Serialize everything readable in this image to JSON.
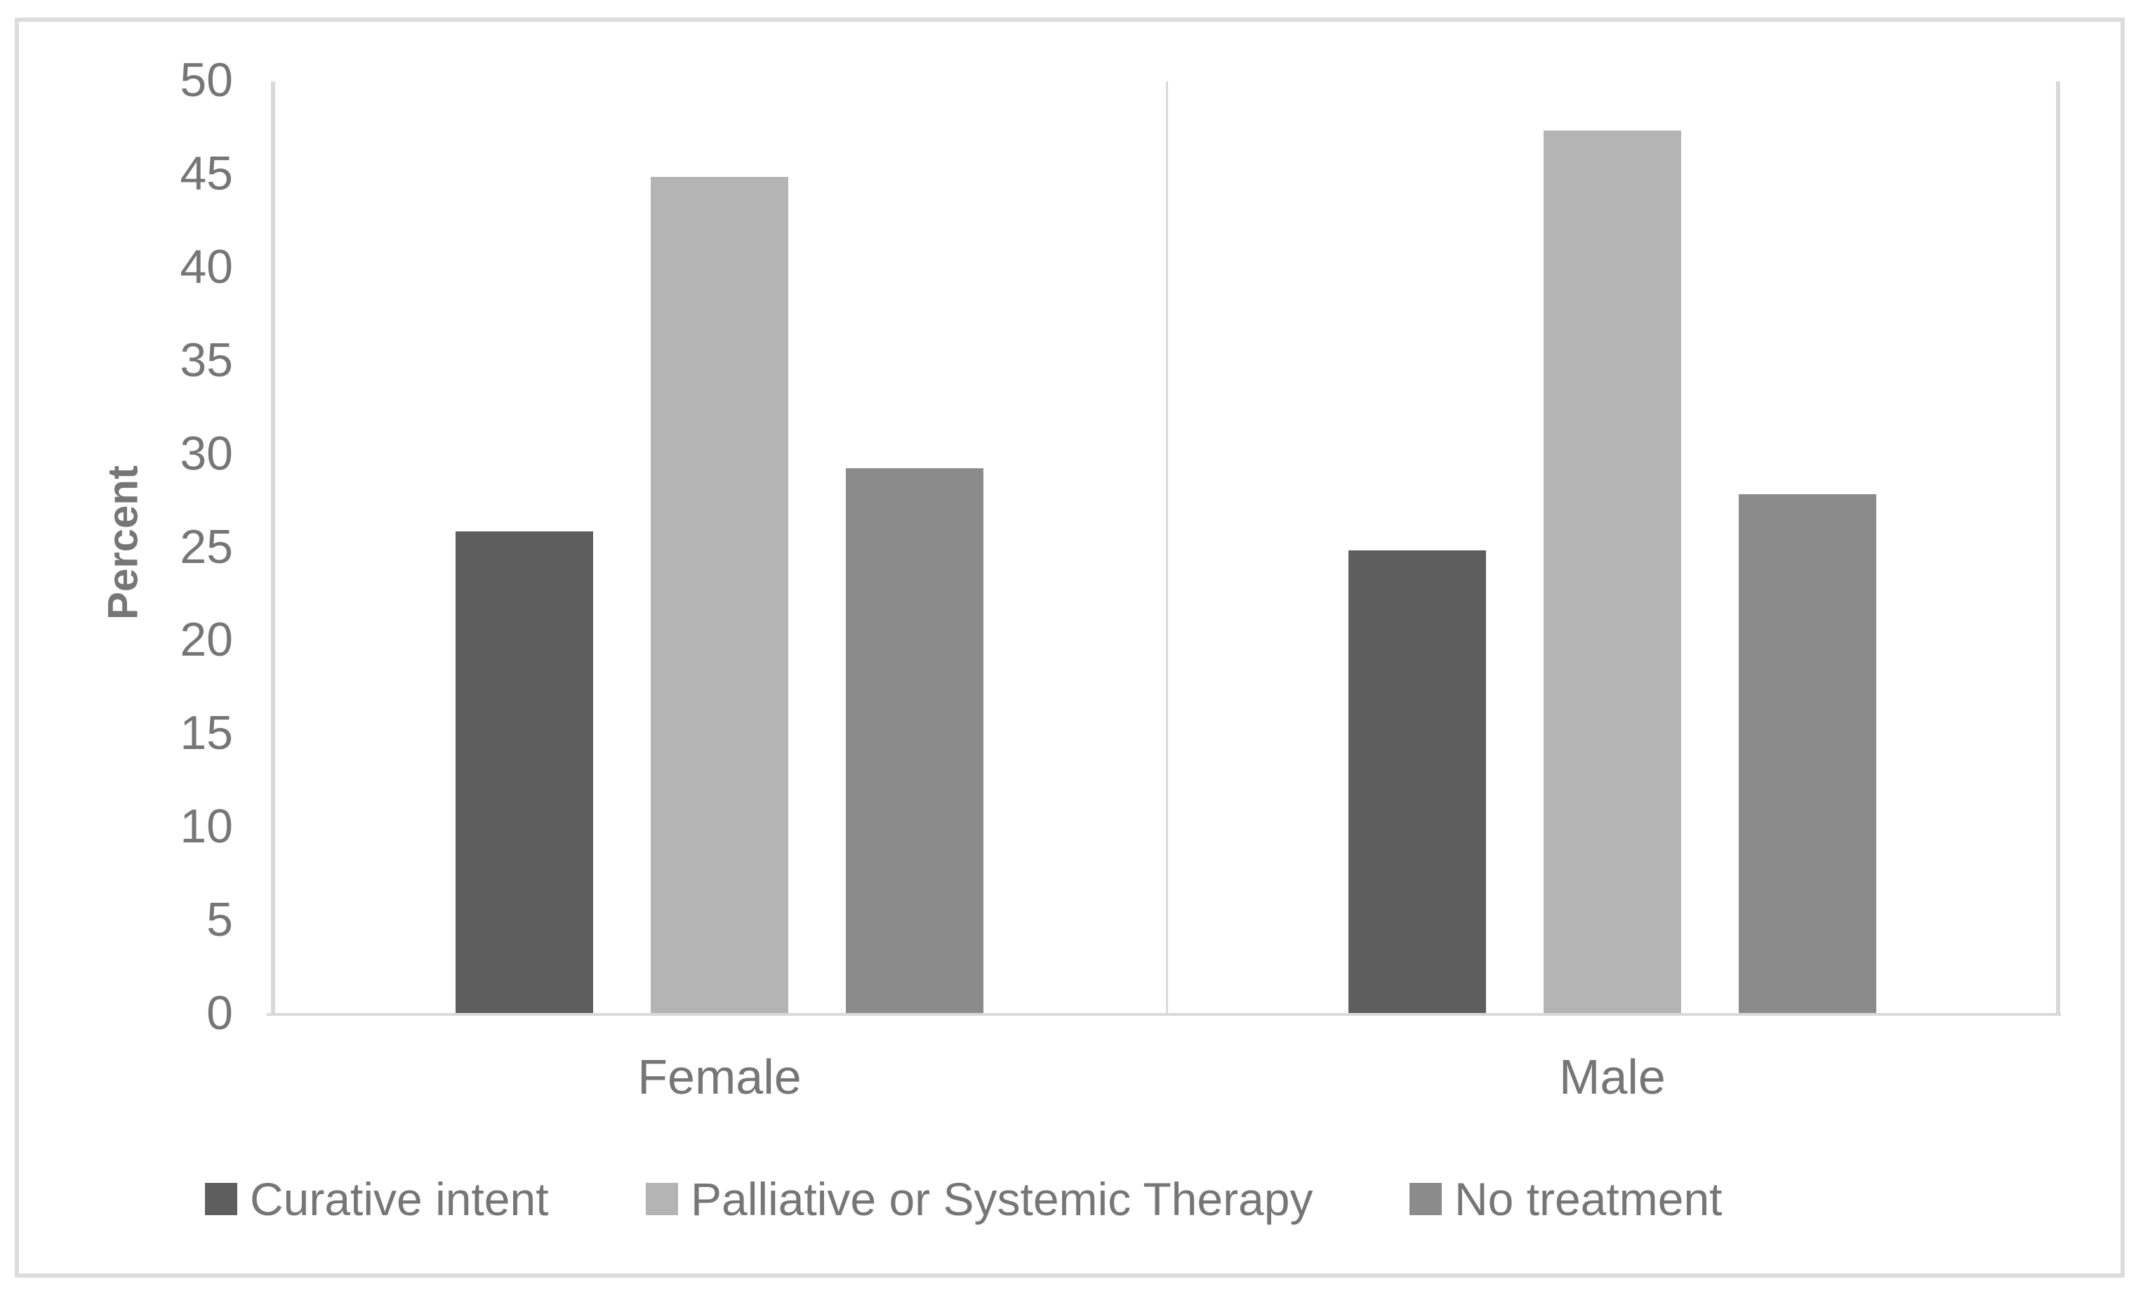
{
  "chart_data": {
    "type": "bar",
    "title": "",
    "ylabel": "Percent",
    "xlabel": "",
    "categories": [
      "Female",
      "Male"
    ],
    "series": [
      {
        "name": "Curative intent",
        "color": "#5e5e5e",
        "values": [
          25.8,
          24.8
        ]
      },
      {
        "name": "Palliative or Systemic Therapy",
        "color": "#b4b4b4",
        "values": [
          44.8,
          47.3
        ]
      },
      {
        "name": "No treatment",
        "color": "#8b8b8b",
        "values": [
          29.2,
          27.8
        ]
      }
    ],
    "ylim": [
      0,
      50
    ],
    "yticks": [
      0,
      5,
      10,
      15,
      20,
      25,
      30,
      35,
      40,
      45,
      50
    ],
    "grid": false,
    "legend_position": "bottom",
    "axis_color": "#d9d9d9",
    "text_color": "#767676",
    "frame_color": "#dcdcdc"
  }
}
